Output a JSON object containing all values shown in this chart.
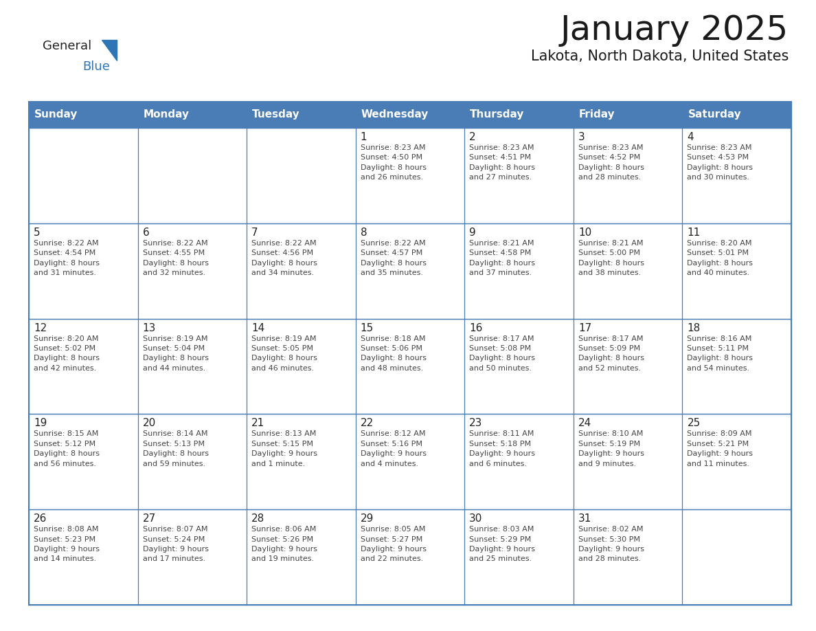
{
  "title": "January 2025",
  "subtitle": "Lakota, North Dakota, United States",
  "header_bg": "#4A7DB5",
  "header_text_color": "#FFFFFF",
  "cell_bg_light": "#F5F5F5",
  "cell_bg_white": "#FFFFFF",
  "border_color": "#4A7DB5",
  "day_names": [
    "Sunday",
    "Monday",
    "Tuesday",
    "Wednesday",
    "Thursday",
    "Friday",
    "Saturday"
  ],
  "title_color": "#1a1a1a",
  "subtitle_color": "#1a1a1a",
  "day_number_color": "#222222",
  "info_color": "#444444",
  "logo_general_color": "#222222",
  "logo_blue_color": "#2E75B6",
  "weeks": [
    [
      {
        "day": null,
        "info": ""
      },
      {
        "day": null,
        "info": ""
      },
      {
        "day": null,
        "info": ""
      },
      {
        "day": 1,
        "info": "Sunrise: 8:23 AM\nSunset: 4:50 PM\nDaylight: 8 hours\nand 26 minutes."
      },
      {
        "day": 2,
        "info": "Sunrise: 8:23 AM\nSunset: 4:51 PM\nDaylight: 8 hours\nand 27 minutes."
      },
      {
        "day": 3,
        "info": "Sunrise: 8:23 AM\nSunset: 4:52 PM\nDaylight: 8 hours\nand 28 minutes."
      },
      {
        "day": 4,
        "info": "Sunrise: 8:23 AM\nSunset: 4:53 PM\nDaylight: 8 hours\nand 30 minutes."
      }
    ],
    [
      {
        "day": 5,
        "info": "Sunrise: 8:22 AM\nSunset: 4:54 PM\nDaylight: 8 hours\nand 31 minutes."
      },
      {
        "day": 6,
        "info": "Sunrise: 8:22 AM\nSunset: 4:55 PM\nDaylight: 8 hours\nand 32 minutes."
      },
      {
        "day": 7,
        "info": "Sunrise: 8:22 AM\nSunset: 4:56 PM\nDaylight: 8 hours\nand 34 minutes."
      },
      {
        "day": 8,
        "info": "Sunrise: 8:22 AM\nSunset: 4:57 PM\nDaylight: 8 hours\nand 35 minutes."
      },
      {
        "day": 9,
        "info": "Sunrise: 8:21 AM\nSunset: 4:58 PM\nDaylight: 8 hours\nand 37 minutes."
      },
      {
        "day": 10,
        "info": "Sunrise: 8:21 AM\nSunset: 5:00 PM\nDaylight: 8 hours\nand 38 minutes."
      },
      {
        "day": 11,
        "info": "Sunrise: 8:20 AM\nSunset: 5:01 PM\nDaylight: 8 hours\nand 40 minutes."
      }
    ],
    [
      {
        "day": 12,
        "info": "Sunrise: 8:20 AM\nSunset: 5:02 PM\nDaylight: 8 hours\nand 42 minutes."
      },
      {
        "day": 13,
        "info": "Sunrise: 8:19 AM\nSunset: 5:04 PM\nDaylight: 8 hours\nand 44 minutes."
      },
      {
        "day": 14,
        "info": "Sunrise: 8:19 AM\nSunset: 5:05 PM\nDaylight: 8 hours\nand 46 minutes."
      },
      {
        "day": 15,
        "info": "Sunrise: 8:18 AM\nSunset: 5:06 PM\nDaylight: 8 hours\nand 48 minutes."
      },
      {
        "day": 16,
        "info": "Sunrise: 8:17 AM\nSunset: 5:08 PM\nDaylight: 8 hours\nand 50 minutes."
      },
      {
        "day": 17,
        "info": "Sunrise: 8:17 AM\nSunset: 5:09 PM\nDaylight: 8 hours\nand 52 minutes."
      },
      {
        "day": 18,
        "info": "Sunrise: 8:16 AM\nSunset: 5:11 PM\nDaylight: 8 hours\nand 54 minutes."
      }
    ],
    [
      {
        "day": 19,
        "info": "Sunrise: 8:15 AM\nSunset: 5:12 PM\nDaylight: 8 hours\nand 56 minutes."
      },
      {
        "day": 20,
        "info": "Sunrise: 8:14 AM\nSunset: 5:13 PM\nDaylight: 8 hours\nand 59 minutes."
      },
      {
        "day": 21,
        "info": "Sunrise: 8:13 AM\nSunset: 5:15 PM\nDaylight: 9 hours\nand 1 minute."
      },
      {
        "day": 22,
        "info": "Sunrise: 8:12 AM\nSunset: 5:16 PM\nDaylight: 9 hours\nand 4 minutes."
      },
      {
        "day": 23,
        "info": "Sunrise: 8:11 AM\nSunset: 5:18 PM\nDaylight: 9 hours\nand 6 minutes."
      },
      {
        "day": 24,
        "info": "Sunrise: 8:10 AM\nSunset: 5:19 PM\nDaylight: 9 hours\nand 9 minutes."
      },
      {
        "day": 25,
        "info": "Sunrise: 8:09 AM\nSunset: 5:21 PM\nDaylight: 9 hours\nand 11 minutes."
      }
    ],
    [
      {
        "day": 26,
        "info": "Sunrise: 8:08 AM\nSunset: 5:23 PM\nDaylight: 9 hours\nand 14 minutes."
      },
      {
        "day": 27,
        "info": "Sunrise: 8:07 AM\nSunset: 5:24 PM\nDaylight: 9 hours\nand 17 minutes."
      },
      {
        "day": 28,
        "info": "Sunrise: 8:06 AM\nSunset: 5:26 PM\nDaylight: 9 hours\nand 19 minutes."
      },
      {
        "day": 29,
        "info": "Sunrise: 8:05 AM\nSunset: 5:27 PM\nDaylight: 9 hours\nand 22 minutes."
      },
      {
        "day": 30,
        "info": "Sunrise: 8:03 AM\nSunset: 5:29 PM\nDaylight: 9 hours\nand 25 minutes."
      },
      {
        "day": 31,
        "info": "Sunrise: 8:02 AM\nSunset: 5:30 PM\nDaylight: 9 hours\nand 28 minutes."
      },
      {
        "day": null,
        "info": ""
      }
    ]
  ]
}
